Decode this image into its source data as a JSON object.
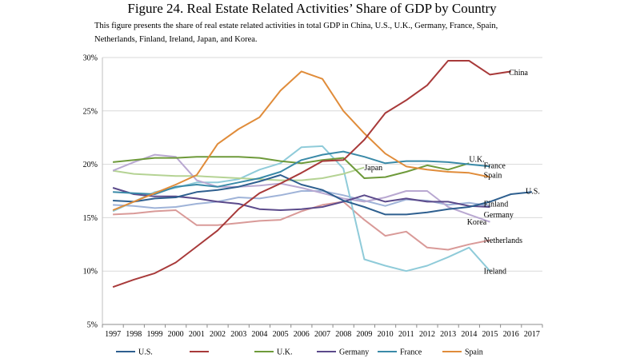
{
  "figure": {
    "title": "Figure 24. Real Estate Related Activities’ Share of GDP by Country",
    "caption": "This figure presents the share of real estate related activities in total GDP in China, U.S., U.K., Germany, France, Spain, Netherlands, Finland, Ireland, Japan, and Korea."
  },
  "chart_data": {
    "type": "line",
    "title": "Figure 24. Real Estate Related Activities’ Share of GDP by Country",
    "xlabel": "",
    "ylabel": "",
    "x": [
      "1997",
      "1998",
      "1999",
      "2000",
      "2001",
      "2002",
      "2003",
      "2004",
      "2005",
      "2006",
      "2007",
      "2008",
      "2009",
      "2010",
      "2011",
      "2012",
      "2013",
      "2014",
      "2015",
      "2016",
      "2017"
    ],
    "ylim": [
      5,
      30
    ],
    "yticks": [
      "5%",
      "10%",
      "15%",
      "20%",
      "25%",
      "30%"
    ],
    "grid": true,
    "legend_position": "bottom",
    "series": [
      {
        "key": "us",
        "name": "U.S.",
        "legend": "U.S.",
        "end_label": "U.S.",
        "color": "#2e5f8f",
        "values": [
          16.6,
          16.5,
          16.8,
          16.9,
          17.4,
          17.6,
          17.9,
          18.4,
          19.0,
          18.1,
          17.6,
          16.6,
          16.0,
          15.3,
          15.3,
          15.5,
          15.8,
          16.0,
          16.5,
          17.2,
          17.4
        ]
      },
      {
        "key": "china",
        "name": "China",
        "legend": "",
        "end_label": "China",
        "color": "#a83a3a",
        "values": [
          8.5,
          9.2,
          9.8,
          10.8,
          12.3,
          13.8,
          15.8,
          17.3,
          18.2,
          19.2,
          20.3,
          20.4,
          22.3,
          24.8,
          26.0,
          27.4,
          29.7,
          29.7,
          28.4,
          28.7,
          null
        ]
      },
      {
        "key": "uk",
        "name": "U.K.",
        "legend": "U.K.",
        "end_label": "U.K.",
        "color": "#6e9a3a",
        "values": [
          20.2,
          20.4,
          20.6,
          20.6,
          20.7,
          20.7,
          20.7,
          20.6,
          20.3,
          20.1,
          20.4,
          20.6,
          18.7,
          18.8,
          19.3,
          19.9,
          19.5,
          20.1,
          null,
          null,
          null
        ]
      },
      {
        "key": "germany",
        "name": "Germany",
        "legend": "Germany",
        "end_label": "Germany",
        "color": "#5b4a8b",
        "values": [
          17.8,
          17.2,
          17.0,
          17.0,
          16.8,
          16.5,
          16.3,
          15.8,
          15.7,
          15.8,
          16.0,
          16.5,
          17.1,
          16.5,
          16.8,
          16.5,
          16.5,
          16.1,
          16.0,
          null,
          null
        ]
      },
      {
        "key": "france",
        "name": "France",
        "legend": "France",
        "end_label": "France",
        "color": "#3a8aa8",
        "values": [
          17.4,
          17.3,
          17.2,
          17.9,
          18.1,
          17.9,
          18.3,
          18.7,
          19.3,
          20.4,
          20.9,
          21.2,
          20.7,
          20.1,
          20.3,
          20.3,
          20.2,
          20.0,
          19.8,
          null,
          null
        ]
      },
      {
        "key": "spain",
        "name": "Spain",
        "legend": "Spain",
        "end_label": "Spain",
        "color": "#e08c3a",
        "values": [
          15.7,
          16.5,
          17.3,
          18.1,
          19.0,
          21.9,
          23.3,
          24.4,
          26.9,
          28.7,
          28.0,
          25.0,
          22.9,
          21.0,
          19.8,
          19.5,
          19.3,
          19.2,
          18.8,
          null,
          null
        ]
      },
      {
        "key": "netherlands",
        "name": "Netherlands",
        "legend": "",
        "end_label": "Netherlands",
        "color": "#d99a98",
        "values": [
          15.3,
          15.4,
          15.6,
          15.7,
          14.3,
          14.3,
          14.5,
          14.7,
          14.8,
          15.6,
          16.2,
          16.5,
          14.8,
          13.3,
          13.7,
          12.2,
          12.0,
          12.5,
          12.9,
          null,
          null
        ]
      },
      {
        "key": "finland",
        "name": "Finland",
        "legend": "",
        "end_label": "Finland",
        "color": "#9fb3d8",
        "values": [
          16.2,
          16.1,
          15.9,
          16.0,
          16.3,
          16.5,
          16.9,
          16.8,
          17.1,
          17.5,
          17.5,
          17.1,
          16.6,
          16.1,
          16.7,
          16.6,
          16.2,
          16.4,
          16.1,
          null,
          null
        ]
      },
      {
        "key": "ireland",
        "name": "Ireland",
        "legend": "",
        "end_label": "Ireland",
        "color": "#8fcbd9",
        "values": [
          15.6,
          16.5,
          17.4,
          17.8,
          18.3,
          18.3,
          18.6,
          19.5,
          20.1,
          21.6,
          21.7,
          19.6,
          11.1,
          10.5,
          10.0,
          10.5,
          11.3,
          12.2,
          10.0,
          null,
          null
        ]
      },
      {
        "key": "japan",
        "name": "Japan",
        "legend": "",
        "end_label": "Japan",
        "color": "#b5d394",
        "values": [
          19.4,
          19.1,
          19.0,
          18.9,
          18.9,
          18.8,
          18.7,
          18.6,
          18.5,
          18.5,
          18.7,
          19.1,
          19.7,
          null,
          null,
          null,
          null,
          null,
          null,
          null,
          null
        ]
      },
      {
        "key": "korea",
        "name": "Korea",
        "legend": "",
        "end_label": "Korea",
        "color": "#b9a8d1",
        "values": [
          19.4,
          20.2,
          20.9,
          20.7,
          18.5,
          17.9,
          17.9,
          18.0,
          18.2,
          17.8,
          17.3,
          16.8,
          16.5,
          16.9,
          17.5,
          17.5,
          16.0,
          15.3,
          14.6,
          null,
          null
        ]
      }
    ]
  }
}
